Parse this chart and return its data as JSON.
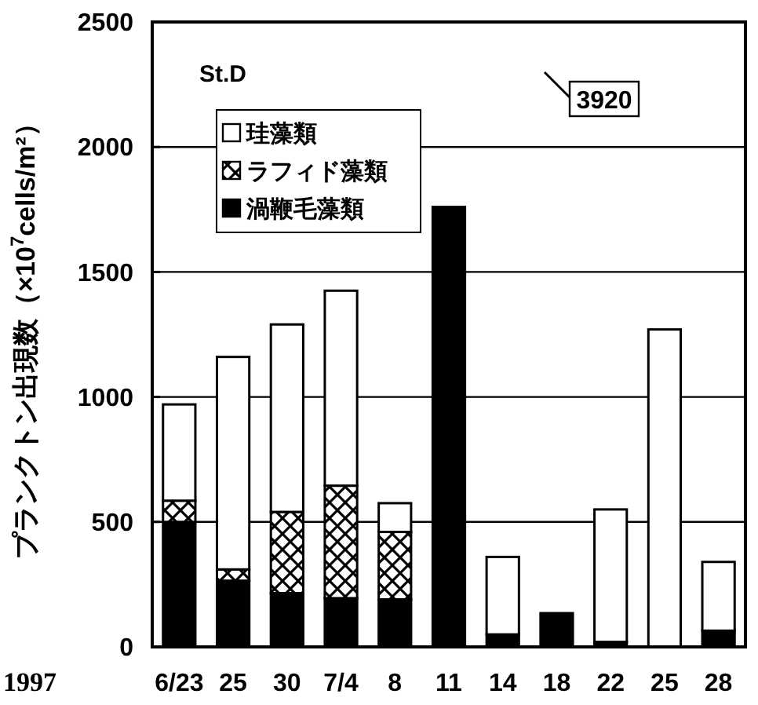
{
  "chart_data": {
    "type": "bar",
    "stacked": true,
    "title": "St.D",
    "ylabel": "プランクトン出現数（×10$^{7}$cells/m²）",
    "categories": [
      "6/23",
      "25",
      "30",
      "7/4",
      "8",
      "11",
      "14",
      "18",
      "22",
      "25",
      "28"
    ],
    "series": [
      {
        "name": "渦鞭毛藻類",
        "color": "#000000",
        "values": [
          500,
          265,
          215,
          195,
          190,
          1760,
          50,
          135,
          20,
          null,
          65
        ]
      },
      {
        "name": "ラフィド藻類",
        "color": "#000000",
        "values": [
          85,
          45,
          325,
          450,
          270,
          0,
          0,
          0,
          0,
          0,
          0
        ]
      },
      {
        "name": "珪藻類",
        "color": "#ffffff",
        "values": [
          385,
          850,
          750,
          780,
          115,
          0,
          310,
          null,
          530,
          1270,
          275
        ]
      }
    ],
    "ylim": [
      0,
      2500
    ],
    "yticks": [
      0,
      500,
      1000,
      1500,
      2000,
      2500
    ],
    "grid": "y",
    "legend": "top left",
    "annotations": [
      "3920",
      "1997"
    ]
  }
}
